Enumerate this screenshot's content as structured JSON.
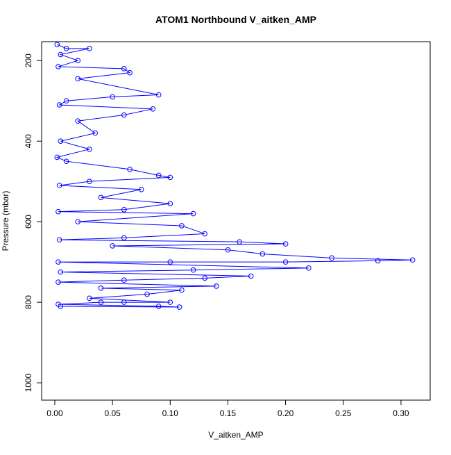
{
  "chart_data": {
    "type": "scatter",
    "lines": true,
    "title": "ATOM1 Northbound V_aitken_AMP",
    "x_label": "V_aitken_AMP",
    "y_label": "Pressure (mbar)",
    "color": "#0000ff",
    "grid": false,
    "y_reversed": true,
    "xlim": [
      -0.0114,
      0.3253
    ],
    "ylim": [
      153,
      1043
    ],
    "xticks": [
      {
        "value": 0,
        "label": "0.00"
      },
      {
        "value": 0.05,
        "label": "0.05"
      },
      {
        "value": 0.1,
        "label": "0.10"
      },
      {
        "value": 0.15,
        "label": "0.15"
      },
      {
        "value": 0.2,
        "label": "0.20"
      },
      {
        "value": 0.25,
        "label": "0.25"
      },
      {
        "value": 0.3,
        "label": "0.30"
      }
    ],
    "yticks": [
      200,
      400,
      600,
      800,
      1000
    ],
    "x": [
      0.002,
      0.01,
      0.03,
      0.005,
      0.02,
      0.003,
      0.06,
      0.065,
      0.02,
      0.09,
      0.05,
      0.01,
      0.004,
      0.085,
      0.06,
      0.02,
      0.035,
      0.005,
      0.03,
      0.002,
      0.01,
      0.065,
      0.09,
      0.1,
      0.03,
      0.004,
      0.075,
      0.04,
      0.1,
      0.06,
      0.003,
      0.12,
      0.02,
      0.11,
      0.13,
      0.06,
      0.004,
      0.16,
      0.2,
      0.05,
      0.15,
      0.18,
      0.24,
      0.31,
      0.28,
      0.2,
      0.1,
      0.003,
      0.22,
      0.12,
      0.005,
      0.17,
      0.13,
      0.06,
      0.003,
      0.14,
      0.04,
      0.11,
      0.08,
      0.03,
      0.1,
      0.06,
      0.04,
      0.003,
      0.09,
      0.108,
      0.005
    ],
    "values": [
      160,
      170,
      170,
      185,
      200,
      215,
      220,
      230,
      245,
      285,
      290,
      300,
      310,
      320,
      335,
      350,
      380,
      400,
      420,
      440,
      450,
      470,
      485,
      490,
      500,
      510,
      520,
      540,
      555,
      570,
      575,
      580,
      600,
      610,
      630,
      640,
      645,
      650,
      655,
      660,
      670,
      680,
      690,
      695,
      697,
      700,
      700,
      700,
      715,
      720,
      725,
      735,
      740,
      745,
      750,
      760,
      765,
      770,
      780,
      790,
      800,
      800,
      800,
      805,
      810,
      812,
      810
    ]
  }
}
